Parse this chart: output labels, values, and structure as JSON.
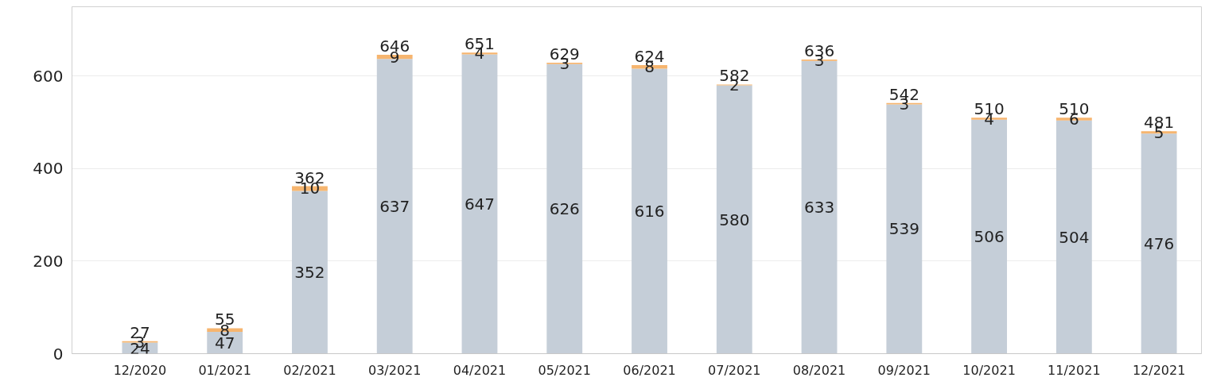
{
  "chart_data": {
    "type": "bar",
    "stacked": true,
    "categories": [
      "12/2020",
      "01/2021",
      "02/2021",
      "03/2021",
      "04/2021",
      "05/2021",
      "06/2021",
      "07/2021",
      "08/2021",
      "09/2021",
      "10/2021",
      "11/2021",
      "12/2021"
    ],
    "series": [
      {
        "color": "#c5ced8",
        "values": [
          24,
          47,
          352,
          637,
          647,
          626,
          616,
          580,
          633,
          539,
          506,
          504,
          476
        ]
      },
      {
        "color": "#f6b56f",
        "values": [
          3,
          8,
          10,
          9,
          4,
          3,
          8,
          2,
          3,
          3,
          4,
          6,
          5
        ]
      }
    ],
    "totals": [
      "27",
      "55",
      "362",
      "646",
      "651",
      "629",
      "624",
      "582",
      "636",
      "542",
      "510",
      "510",
      "481"
    ],
    "data_labels": true,
    "ylim": [
      0,
      750
    ],
    "yticks": [
      0,
      200,
      400,
      600
    ],
    "grid": "y"
  }
}
